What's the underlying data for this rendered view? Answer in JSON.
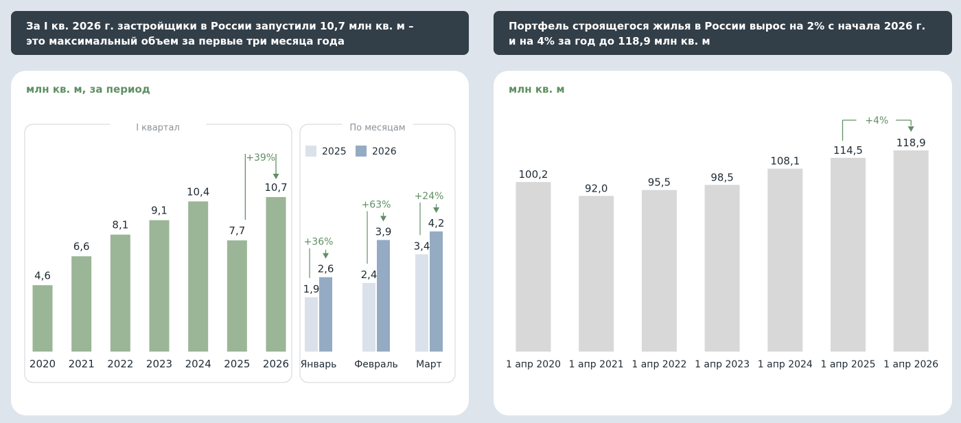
{
  "header_left": {
    "line1": "За I кв. 2026 г. застройщики в России запустили 10,7 млн кв. м –",
    "line2": "это максимальный объем за первые три месяца года"
  },
  "header_right": {
    "line1": "Портфель строящегося жилья в России вырос на 2% с начала 2026 г.",
    "line2": "и на 4% за год до 118,9 млн кв. м"
  },
  "colors": {
    "green_bar": "#9bb597",
    "bar_2025": "#dae1ea",
    "bar_2026": "#95abc3",
    "grey_bar": "#d8d8d8",
    "accent_green": "#5f8f63"
  },
  "chart_data": [
    {
      "type": "bar",
      "unit_label": "млн кв. м, за период",
      "title": "I квартал",
      "categories": [
        "2020",
        "2021",
        "2022",
        "2023",
        "2024",
        "2025",
        "2026"
      ],
      "values": [
        4.6,
        6.6,
        8.1,
        9.1,
        10.4,
        7.7,
        10.7
      ],
      "value_labels": [
        "4,6",
        "6,6",
        "8,1",
        "9,1",
        "10,4",
        "7,7",
        "10,7"
      ],
      "annotation": {
        "text": "+39%",
        "from": "2025",
        "to": "2026"
      }
    },
    {
      "type": "bar",
      "title": "По месяцам",
      "categories": [
        "Январь",
        "Февраль",
        "Март"
      ],
      "series": [
        {
          "name": "2025",
          "values": [
            1.9,
            2.4,
            3.4
          ],
          "labels": [
            "1,9",
            "2,4",
            "3,4"
          ]
        },
        {
          "name": "2026",
          "values": [
            2.6,
            3.9,
            4.2
          ],
          "labels": [
            "2,6",
            "3,9",
            "4,2"
          ]
        }
      ],
      "annotations": [
        "+36%",
        "+63%",
        "+24%"
      ]
    },
    {
      "type": "bar",
      "unit_label": "млн кв. м",
      "categories": [
        "1 апр 2020",
        "1 апр 2021",
        "1 апр 2022",
        "1 апр 2023",
        "1 апр 2024",
        "1 апр 2025",
        "1 апр 2026"
      ],
      "values": [
        100.2,
        92.0,
        95.5,
        98.5,
        108.1,
        114.5,
        118.9
      ],
      "value_labels": [
        "100,2",
        "92,0",
        "95,5",
        "98,5",
        "108,1",
        "114,5",
        "118,9"
      ],
      "annotation": {
        "text": "+4%",
        "from": "1 апр 2025",
        "to": "1 апр 2026"
      }
    }
  ]
}
